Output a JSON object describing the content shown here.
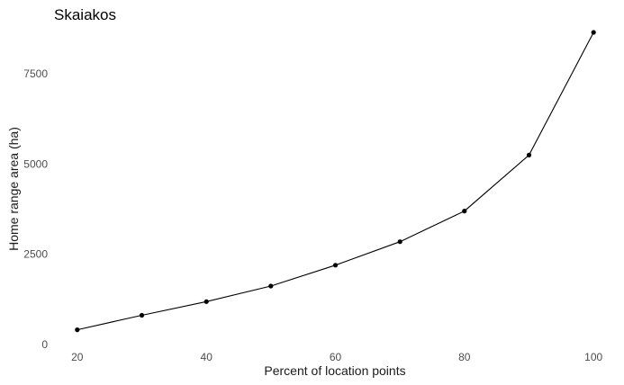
{
  "chart_data": {
    "type": "line",
    "title": "Skaiakos",
    "xlabel": "Percent of location points",
    "ylabel": "Home range area (ha)",
    "x": [
      20,
      30,
      40,
      50,
      60,
      70,
      80,
      90,
      100
    ],
    "series": [
      {
        "values": [
          410,
          810,
          1190,
          1620,
          2200,
          2850,
          3700,
          5250,
          8650
        ]
      }
    ],
    "xticks": [
      20,
      40,
      60,
      80,
      100
    ],
    "yticks": [
      0,
      2500,
      5000,
      7500
    ],
    "xlim": [
      16.4,
      103.6
    ],
    "ylim": [
      0,
      8800
    ],
    "grid": false,
    "line_color": "#000000",
    "marker_color": "#000000"
  }
}
